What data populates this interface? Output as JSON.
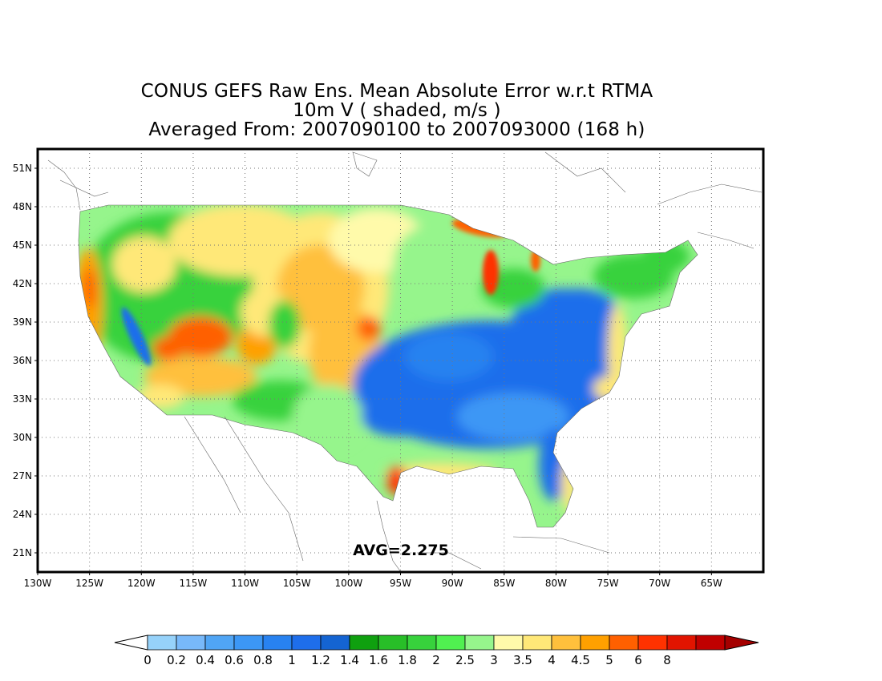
{
  "title": {
    "line1": "CONUS GEFS Raw Ens. Mean Absolute Error w.r.t RTMA",
    "line2": "10m V ( shaded, m/s )",
    "line3": "Averaged From: 2007090100 to 2007093000 (168 h)"
  },
  "map": {
    "lon_range": [
      -130,
      -60
    ],
    "lat_range": [
      19.5,
      52.5
    ],
    "lon_ticks": [
      {
        "v": -130,
        "label": "130W"
      },
      {
        "v": -125,
        "label": "125W"
      },
      {
        "v": -120,
        "label": "120W"
      },
      {
        "v": -115,
        "label": "115W"
      },
      {
        "v": -110,
        "label": "110W"
      },
      {
        "v": -105,
        "label": "105W"
      },
      {
        "v": -100,
        "label": "100W"
      },
      {
        "v": -95,
        "label": "95W"
      },
      {
        "v": -90,
        "label": "90W"
      },
      {
        "v": -85,
        "label": "85W"
      },
      {
        "v": -80,
        "label": "80W"
      },
      {
        "v": -75,
        "label": "75W"
      },
      {
        "v": -70,
        "label": "70W"
      },
      {
        "v": -65,
        "label": "65W"
      }
    ],
    "lat_ticks": [
      {
        "v": 21,
        "label": "21N"
      },
      {
        "v": 24,
        "label": "24N"
      },
      {
        "v": 27,
        "label": "27N"
      },
      {
        "v": 30,
        "label": "30N"
      },
      {
        "v": 33,
        "label": "33N"
      },
      {
        "v": 36,
        "label": "36N"
      },
      {
        "v": 39,
        "label": "39N"
      },
      {
        "v": 42,
        "label": "42N"
      },
      {
        "v": 45,
        "label": "45N"
      },
      {
        "v": 48,
        "label": "48N"
      },
      {
        "v": 51,
        "label": "51N"
      }
    ],
    "grid": true,
    "avg_label": "AVG=2.275"
  },
  "colorbar": {
    "colors": [
      "#96d2fa",
      "#78b9fa",
      "#50a5f5",
      "#3c97f5",
      "#2882f0",
      "#1e6eeb",
      "#1464d2",
      "#0fa00f",
      "#28be28",
      "#37d23c",
      "#50f050",
      "#96f58c",
      "#fffaaa",
      "#ffe878",
      "#ffc03c",
      "#ffa000",
      "#ff6000",
      "#ff3200",
      "#e11400",
      "#c00000"
    ],
    "under_color": "#ffffff",
    "over_color": "#a50000",
    "labels": [
      "0",
      "0.2",
      "0.4",
      "0.6",
      "0.8",
      "1",
      "1.2",
      "1.4",
      "1.6",
      "1.8",
      "2",
      "2.5",
      "3",
      "3.5",
      "4",
      "4.5",
      "5",
      "6",
      "8"
    ]
  }
}
